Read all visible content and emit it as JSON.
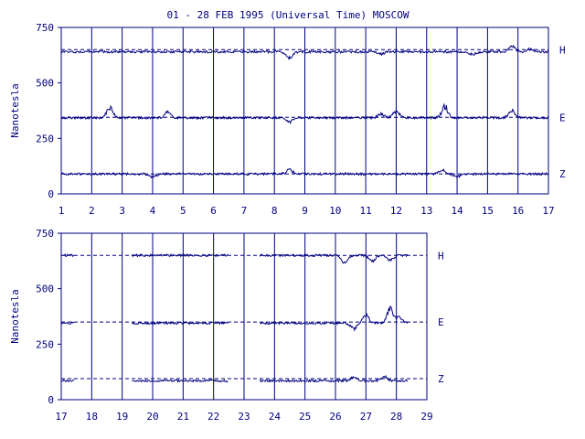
{
  "title": "01 - 28 FEB 1995 (Universal Time) MOSCOW",
  "chart_data": [
    {
      "type": "line",
      "ylabel": "Nanotesla",
      "ylim": [
        0,
        750
      ],
      "yticks": [
        0,
        250,
        500,
        750
      ],
      "xlim": [
        1,
        17
      ],
      "xticks": [
        "1",
        "2",
        "3",
        "4",
        "5",
        "6",
        "7",
        "8",
        "9",
        "10",
        "11",
        "12",
        "13",
        "14",
        "15",
        "16",
        "17"
      ],
      "series": [
        {
          "name": "H",
          "baseline": 650,
          "color": "#000080",
          "mean": 640,
          "gaps": [],
          "features": [
            [
              8.5,
              -30
            ],
            [
              11.5,
              -15
            ],
            [
              14.5,
              -15
            ],
            [
              15.8,
              30
            ],
            [
              16.4,
              15
            ]
          ]
        },
        {
          "name": "E",
          "baseline": 345,
          "color": "#000080",
          "mean": 343,
          "gaps": [],
          "features": [
            [
              2.6,
              55
            ],
            [
              4.5,
              30
            ],
            [
              8.5,
              -25
            ],
            [
              11.5,
              20
            ],
            [
              12.0,
              35
            ],
            [
              13.6,
              60
            ],
            [
              15.8,
              40
            ]
          ]
        },
        {
          "name": "Z",
          "baseline": 90,
          "color": "#000080",
          "mean": 90,
          "gaps": [],
          "features": [
            [
              4.0,
              -15
            ],
            [
              8.5,
              20
            ],
            [
              13.5,
              20
            ],
            [
              14.0,
              -15
            ]
          ]
        }
      ],
      "grid": "vertical"
    },
    {
      "type": "line",
      "ylabel": "Nanotesla",
      "ylim": [
        0,
        750
      ],
      "yticks": [
        0,
        250,
        500,
        750
      ],
      "xlim": [
        17,
        29
      ],
      "xticks": [
        "17",
        "18",
        "19",
        "20",
        "21",
        "22",
        "23",
        "24",
        "25",
        "26",
        "27",
        "28",
        "29"
      ],
      "series": [
        {
          "name": "H",
          "baseline": 650,
          "color": "#000080",
          "mean": 650,
          "gaps": [
            [
              17.45,
              19.3
            ],
            [
              22.5,
              23.5
            ],
            [
              28.4,
              29
            ]
          ],
          "features": [
            [
              26.3,
              -35
            ],
            [
              27.2,
              -30
            ],
            [
              27.8,
              -25
            ]
          ]
        },
        {
          "name": "E",
          "baseline": 350,
          "color": "#000080",
          "mean": 345,
          "gaps": [
            [
              17.45,
              19.3
            ],
            [
              22.5,
              23.5
            ],
            [
              28.4,
              29
            ]
          ],
          "features": [
            [
              26.6,
              -30
            ],
            [
              27.0,
              40
            ],
            [
              27.8,
              80
            ],
            [
              28.1,
              30
            ]
          ]
        },
        {
          "name": "Z",
          "baseline": 95,
          "color": "#000080",
          "mean": 85,
          "gaps": [
            [
              17.45,
              19.3
            ],
            [
              22.5,
              23.5
            ],
            [
              28.4,
              29
            ]
          ],
          "features": [
            [
              26.6,
              20
            ],
            [
              27.6,
              20
            ]
          ]
        }
      ],
      "grid": "vertical"
    }
  ]
}
